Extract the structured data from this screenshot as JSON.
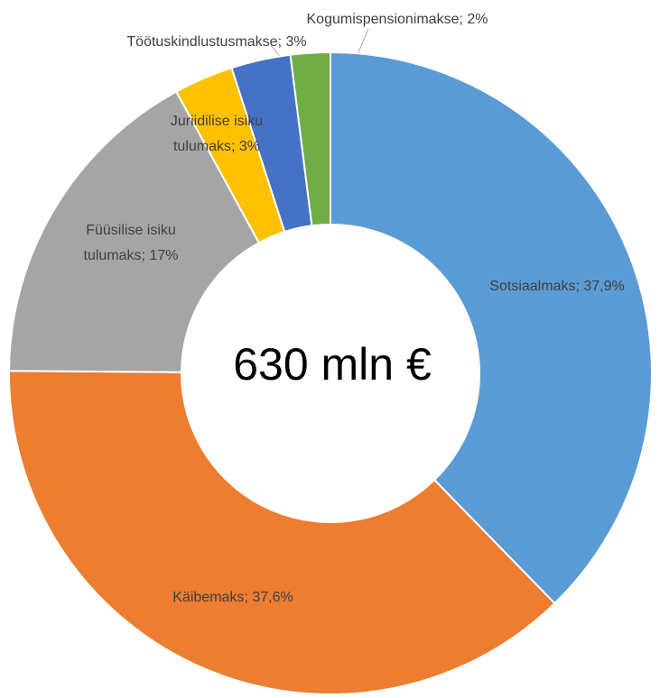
{
  "chart_data": {
    "type": "donut",
    "values": [
      37.9,
      37.6,
      17,
      3,
      3,
      2
    ],
    "value_labels": [
      "Sotsiaalmaks; 37,9%",
      "Käibemaks; 37,6%",
      "Füüsilise isiku\ntulumaks; 17%",
      "Juriidilise isiku\ntulumaks; 3%",
      "Töötuskindlustusmakse; 3%",
      "Kogumispensionimakse; 2%"
    ],
    "colors": [
      "#5b9bd5",
      "#ed7d31",
      "#a5a5a5",
      "#ffc000",
      "#4472c4",
      "#70ad47"
    ],
    "center_label": "630 mln €"
  }
}
